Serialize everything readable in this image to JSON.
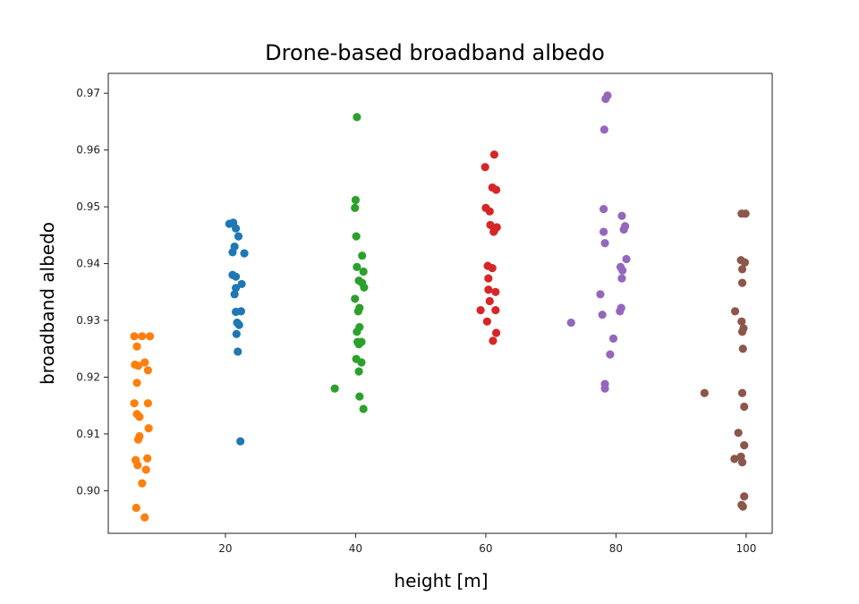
{
  "chart_data": {
    "type": "scatter",
    "title": "Drone-based broadband albedo",
    "xlabel": "height [m]",
    "ylabel": "broadband albedo",
    "xlim": [
      2,
      104
    ],
    "ylim": [
      0.8925,
      0.9735
    ],
    "x_ticks": [
      20,
      40,
      60,
      80,
      100
    ],
    "x_tick_labels": [
      "20",
      "40",
      "60",
      "80",
      "100"
    ],
    "y_ticks": [
      0.9,
      0.91,
      0.92,
      0.93,
      0.94,
      0.95,
      0.96,
      0.97
    ],
    "y_tick_labels": [
      "0.90",
      "0.91",
      "0.92",
      "0.93",
      "0.94",
      "0.95",
      "0.96",
      "0.97"
    ],
    "grid": false,
    "series": [
      {
        "color": "#ff7f0e",
        "x": [
          7.2,
          8.4,
          6.0,
          6.4,
          7.6,
          6.1,
          6.6,
          8.1,
          6.4,
          8.1,
          6.0,
          6.4,
          6.8,
          8.2,
          6.8,
          6.6,
          8.0,
          6.2,
          7.8,
          6.5,
          7.2,
          6.3,
          7.6
        ],
        "y": [
          0.9272,
          0.9272,
          0.9272,
          0.9254,
          0.9226,
          0.9222,
          0.922,
          0.9212,
          0.919,
          0.9154,
          0.9154,
          0.9135,
          0.913,
          0.911,
          0.9096,
          0.909,
          0.9057,
          0.9054,
          0.9037,
          0.9045,
          0.9013,
          0.897,
          0.8953
        ]
      },
      {
        "color": "#1f77b4",
        "x": [
          20.6,
          21.2,
          21.6,
          22.0,
          21.4,
          21.1,
          22.9,
          21.1,
          21.6,
          22.5,
          21.6,
          21.4,
          22.4,
          21.8,
          22.1,
          21.7,
          21.9,
          21.6,
          22.3
        ],
        "y": [
          0.947,
          0.9472,
          0.9462,
          0.9448,
          0.943,
          0.942,
          0.9418,
          0.938,
          0.9377,
          0.9364,
          0.9357,
          0.9346,
          0.9316,
          0.9296,
          0.9292,
          0.9276,
          0.9245,
          0.9315,
          0.9087
        ]
      },
      {
        "color": "#2ca02c",
        "x": [
          40.2,
          40.0,
          39.9,
          40.1,
          41.0,
          40.2,
          41.2,
          40.5,
          41.0,
          41.3,
          39.9,
          40.6,
          40.4,
          40.6,
          40.2,
          40.9,
          40.3,
          40.5,
          40.1,
          40.9,
          40.5,
          36.8,
          40.6,
          41.2
        ],
        "y": [
          0.9658,
          0.9512,
          0.9498,
          0.9448,
          0.9414,
          0.9394,
          0.9386,
          0.937,
          0.9366,
          0.9358,
          0.9338,
          0.9322,
          0.9316,
          0.9288,
          0.928,
          0.9262,
          0.9262,
          0.9258,
          0.9232,
          0.9226,
          0.921,
          0.918,
          0.9166,
          0.9144
        ]
      },
      {
        "color": "#d62728",
        "x": [
          61.3,
          59.9,
          61.0,
          61.6,
          60.0,
          60.6,
          60.7,
          61.7,
          61.3,
          61.2,
          60.3,
          61.0,
          60.4,
          60.4,
          61.5,
          60.6,
          59.2,
          61.5,
          60.2,
          61.6,
          61.1
        ],
        "y": [
          0.9592,
          0.957,
          0.9534,
          0.953,
          0.9498,
          0.9492,
          0.9468,
          0.9464,
          0.9458,
          0.9456,
          0.9396,
          0.9392,
          0.9374,
          0.9354,
          0.935,
          0.9334,
          0.9318,
          0.9318,
          0.9298,
          0.9278,
          0.9264
        ]
      },
      {
        "color": "#9467bd",
        "x": [
          78.7,
          78.4,
          78.2,
          78.1,
          80.9,
          78.1,
          81.4,
          81.2,
          78.3,
          81.6,
          80.7,
          81.0,
          80.9,
          77.6,
          80.8,
          80.6,
          73.1,
          77.9,
          79.6,
          79.1,
          78.3,
          78.3
        ],
        "y": [
          0.9696,
          0.969,
          0.9636,
          0.9496,
          0.9484,
          0.9456,
          0.9466,
          0.946,
          0.9436,
          0.9408,
          0.9394,
          0.9388,
          0.9374,
          0.9346,
          0.9322,
          0.9316,
          0.9296,
          0.931,
          0.9268,
          0.924,
          0.9188,
          0.918
        ]
      },
      {
        "color": "#8c564b",
        "x": [
          99.3,
          99.9,
          99.2,
          99.8,
          99.4,
          98.3,
          99.3,
          99.6,
          99.4,
          99.5,
          99.4,
          93.6,
          99.4,
          99.7,
          98.8,
          99.7,
          98.2,
          99.2,
          99.4,
          99.7,
          99.3,
          99.5
        ],
        "y": [
          0.9488,
          0.9488,
          0.9406,
          0.9402,
          0.939,
          0.9316,
          0.9298,
          0.9286,
          0.928,
          0.925,
          0.9366,
          0.9172,
          0.9172,
          0.9148,
          0.9102,
          0.908,
          0.9056,
          0.906,
          0.905,
          0.899,
          0.8975,
          0.8972
        ]
      }
    ]
  }
}
